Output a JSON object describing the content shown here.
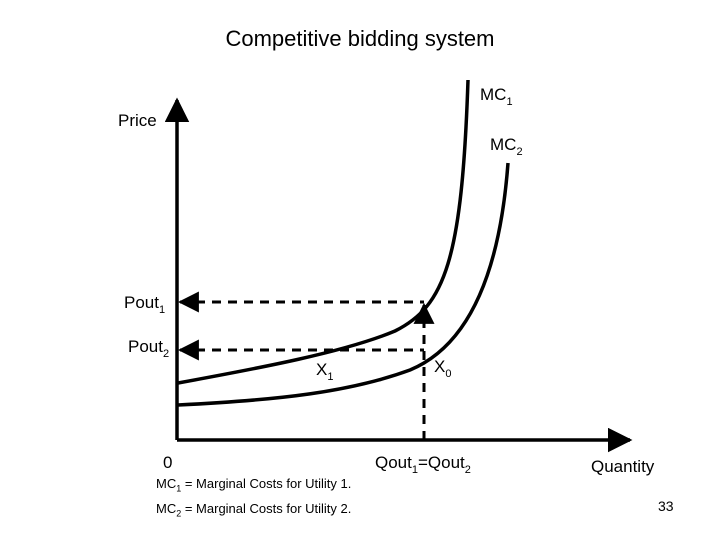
{
  "slide": {
    "title": "Competitive bidding system",
    "page_number": "33"
  },
  "diagram": {
    "y_axis_label": "Price",
    "x_axis_label": "Quantity",
    "origin_label": "0",
    "curve_1": {
      "base": "MC",
      "sub": "1"
    },
    "curve_2": {
      "base": "MC",
      "sub": "2"
    },
    "price_1": {
      "base": "Pout",
      "sub": "1"
    },
    "price_2": {
      "base": "Pout",
      "sub": "2"
    },
    "point_1": {
      "base": "X",
      "sub": "1"
    },
    "point_0": {
      "base": "X",
      "sub": "0"
    },
    "quantity_label": {
      "base1": "Qout",
      "sub1": "1",
      "mid": "=Qout",
      "sub2": "2"
    }
  },
  "footnotes": [
    {
      "base": "MC",
      "sub": "1",
      "text": " = Marginal Costs for Utility 1."
    },
    {
      "base": "MC",
      "sub": "2",
      "text": " = Marginal Costs for Utility 2."
    }
  ]
}
